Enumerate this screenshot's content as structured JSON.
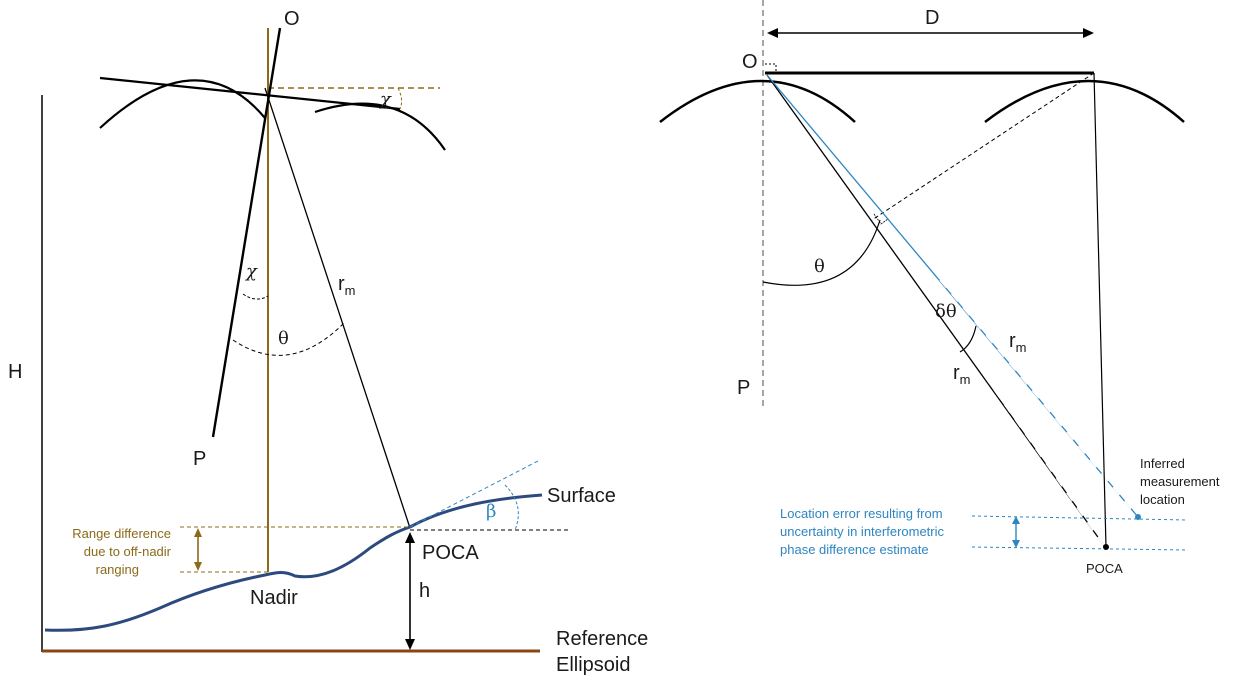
{
  "left_diagram": {
    "label_O": "O",
    "label_P": "P",
    "label_H": "H",
    "label_chi_top": "χ",
    "label_chi_mid": "χ",
    "label_theta": "θ",
    "label_r": "r",
    "label_r_sub": "m",
    "label_beta": "β",
    "label_surface": "Surface",
    "label_poca": "POCA",
    "label_nadir": "Nadir",
    "label_h": "h",
    "label_reference": "Reference",
    "label_ellipsoid": "Ellipsoid",
    "range_note_line1": "Range difference",
    "range_note_line2": "due to off-nadir",
    "range_note_line3": "ranging"
  },
  "right_diagram": {
    "label_D": "D",
    "label_O": "O",
    "label_P": "P",
    "label_theta": "θ",
    "label_dtheta": "δθ",
    "label_r_blue": "r",
    "label_r_blue_sub": "m",
    "label_r_black": "r",
    "label_r_black_sub": "m",
    "inferred_line1": "Inferred",
    "inferred_line2": "measurement",
    "inferred_line3": "location",
    "error_line1": "Location error resulting from",
    "error_line2": "uncertainty in interferometric",
    "error_line3": "phase difference estimate",
    "label_poca": "POCA"
  },
  "colors": {
    "gold": "#8b6a1a",
    "blue": "#2e86c1",
    "navy": "#2c4a7e",
    "brown": "#8b4513"
  }
}
